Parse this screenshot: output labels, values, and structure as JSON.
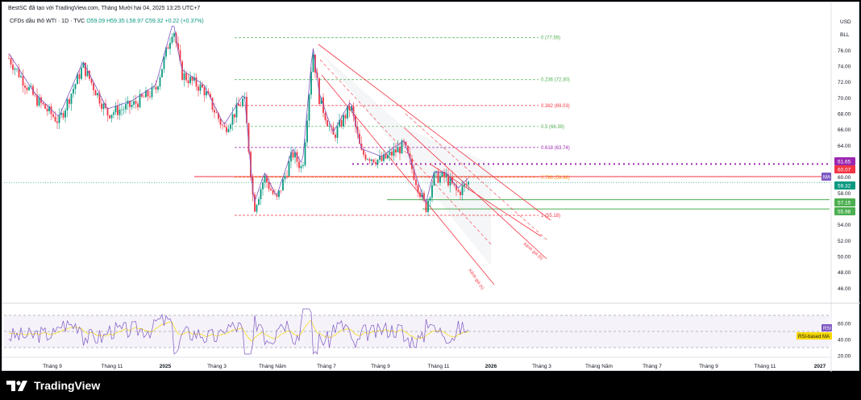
{
  "header": {
    "publisher_line": "BestSC đã tạo với TradingView.com, Tháng Mười hai 04, 2025 13:25 UTC+7"
  },
  "legend": {
    "symbol": "CFDs dầu thô WTI · 1D · TVC",
    "ohlc": "O59.09  H59.35  L58.97  C59.32  +0.22 (+0.37%)"
  },
  "price_axis": {
    "currency": "USD",
    "unit": "BLL",
    "ticks": [
      "76.00",
      "74.00",
      "72.00",
      "70.00",
      "68.00",
      "66.00",
      "64.00",
      "62.00",
      "60.00",
      "58.00",
      "56.00",
      "54.00",
      "52.00",
      "50.00",
      "48.00",
      "46.00"
    ],
    "tags": [
      {
        "text": "61.65",
        "color": "#9c27b0",
        "value": 61.65
      },
      {
        "text": "60.07",
        "color": "#f23645",
        "value": 60.07
      },
      {
        "text": "MA",
        "color": "#7e57c2",
        "value": 60.0
      },
      {
        "text": "59.32",
        "color": "#089981",
        "value": 59.32
      },
      {
        "text": "57.15",
        "color": "#4caf50",
        "value": 57.15
      },
      {
        "text": "55.98",
        "color": "#4caf50",
        "value": 55.98
      }
    ]
  },
  "rsi_axis": {
    "ticks": [
      "60.00",
      "40.00",
      "20.00"
    ],
    "tags": [
      {
        "text": "RSI",
        "color": "#7e57c2"
      },
      {
        "text": "RSI-based MA",
        "color": "#f7d900"
      }
    ]
  },
  "time_axis": {
    "labels": [
      "Tháng 9",
      "Tháng 11",
      "2025",
      "Tháng 3",
      "Tháng Năm",
      "Tháng 7",
      "Tháng 9",
      "Tháng 11",
      "2026",
      "Tháng 3",
      "Tháng Năm",
      "Tháng 7",
      "Tháng 9",
      "Tháng 11",
      "2027"
    ]
  },
  "fib_levels": [
    {
      "label": "0 (77.59)",
      "value": 77.59,
      "color": "#4caf50"
    },
    {
      "label": "0.236 (72.30)",
      "value": 72.3,
      "color": "#4caf50"
    },
    {
      "label": "0.382 (69.03)",
      "value": 69.03,
      "color": "#f23645"
    },
    {
      "label": "0.5 (66.39)",
      "value": 66.39,
      "color": "#4caf50"
    },
    {
      "label": "0.618 (63.74)",
      "value": 63.74,
      "color": "#9c27b0"
    },
    {
      "label": "0.786 (59.98)",
      "value": 59.98,
      "color": "#ff9800"
    },
    {
      "label": "1 (55.18)",
      "value": 55.18,
      "color": "#f23645"
    }
  ],
  "channel_labels": {
    "lower": "Kênh giá (x)",
    "upper": "Kênh giá (b)"
  },
  "colors": {
    "up": "#089981",
    "down": "#f23645",
    "ma": "#7e57c2",
    "rsi": "#7e57c2",
    "rsi_ma": "#f7d900"
  },
  "footer": {
    "brand": "TradingView"
  },
  "chart_data": {
    "type": "line",
    "title": "CFDs dầu thô WTI · 1D · TVC",
    "ylabel": "USD",
    "ylim": [
      45.5,
      78.5
    ],
    "series": [
      {
        "name": "",
        "x": [
          "Tháng 9",
          "Tháng 11",
          "2025",
          "Tháng 3",
          "Tháng Năm",
          "Tháng 7",
          "Tháng 9",
          "Tháng 11"
        ],
        "values": [
          71.5,
          69.5,
          73.5,
          66.0,
          61.0,
          68.0,
          63.5,
          59.3
        ]
      }
    ],
    "rsi": {
      "ylim": [
        20,
        80
      ],
      "levels": [
        70,
        50,
        30
      ]
    }
  }
}
